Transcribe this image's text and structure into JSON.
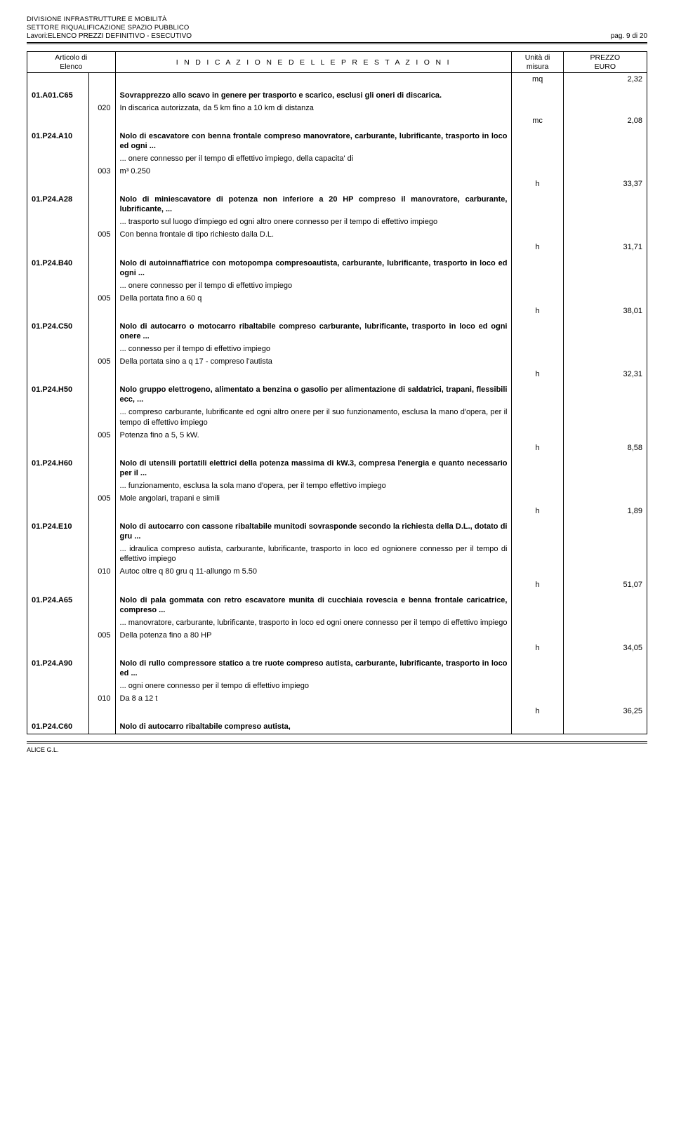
{
  "header": {
    "line1": "DIVISIONE INFRASTRUTTURE E MOBILITÀ",
    "line2": "SETTORE RIQUALIFICAZIONE SPAZIO PUBBLICO",
    "works": "Lavori:ELENCO PREZZI DEFINITIVO - ESECUTIVO",
    "page": "pag. 9 di 20"
  },
  "tableHeader": {
    "col1a": "Articolo di",
    "col1b": "Elenco",
    "col2": "I N D I C A Z I O N E   D E L L E   P R E S T A Z I O N I",
    "col3a": "Unità di",
    "col3b": "misura",
    "col4a": "PREZZO",
    "col4b": "EURO"
  },
  "rows": [
    {
      "t": "price",
      "unit": "mq",
      "price": "2,32"
    },
    {
      "t": "code",
      "code": "01.A01.C65",
      "desc": "Sovrapprezzo allo scavo in genere per trasporto e scarico, esclusi gli oneri di discarica.",
      "bold": true
    },
    {
      "t": "sub",
      "sub": "020",
      "desc": "In discarica autorizzata, da 5 km fino a 10 km di distanza"
    },
    {
      "t": "price",
      "unit": "mc",
      "price": "2,08"
    },
    {
      "t": "code",
      "code": "01.P24.A10",
      "desc": "Nolo di escavatore con benna frontale compreso manovratore, carburante, lubrificante, trasporto in loco ed ogni ...",
      "bold": true
    },
    {
      "t": "desc",
      "desc": "... onere connesso per il tempo di effettivo impiego,  della capacita' di"
    },
    {
      "t": "sub",
      "sub": "003",
      "desc": "m³ 0.250"
    },
    {
      "t": "price",
      "unit": "h",
      "price": "33,37"
    },
    {
      "t": "code",
      "code": "01.P24.A28",
      "desc": "Nolo di miniescavatore di potenza non inferiore a 20 HP compreso il manovratore, carburante, lubrificante, ...",
      "bold": true
    },
    {
      "t": "desc",
      "desc": "... trasporto sul luogo d'impiego ed ogni altro onere connesso per il tempo di effettivo impiego"
    },
    {
      "t": "sub",
      "sub": "005",
      "desc": "Con benna frontale di tipo richiesto dalla D.L."
    },
    {
      "t": "price",
      "unit": "h",
      "price": "31,71"
    },
    {
      "t": "code",
      "code": "01.P24.B40",
      "desc": "Nolo di autoinnaffiatrice con motopompa compresoautista, carburante, lubrificante, trasporto in loco ed ogni ...",
      "bold": true
    },
    {
      "t": "desc",
      "desc": "... onere connesso per il tempo di effettivo impiego"
    },
    {
      "t": "sub",
      "sub": "005",
      "desc": "Della portata fino a 60 q"
    },
    {
      "t": "price",
      "unit": "h",
      "price": "38,01"
    },
    {
      "t": "code",
      "code": "01.P24.C50",
      "desc": "Nolo di autocarro o motocarro ribaltabile compreso carburante, lubrificante,  trasporto in loco ed ogni onere ...",
      "bold": true
    },
    {
      "t": "desc",
      "desc": "... connesso per il tempo di effettivo impiego"
    },
    {
      "t": "sub",
      "sub": "005",
      "desc": "Della portata sino a q 17 - compreso l'autista"
    },
    {
      "t": "price",
      "unit": "h",
      "price": "32,31"
    },
    {
      "t": "code",
      "code": "01.P24.H50",
      "desc": "Nolo gruppo elettrogeno,  alimentato a benzina o gasolio per alimentazione di saldatrici, trapani, flessibili ecc, ...",
      "bold": true
    },
    {
      "t": "desc",
      "desc": "... compreso carburante,  lubrificante ed ogni altro onere per il suo funzionamento, esclusa la mano d'opera,  per il tempo di effettivo impiego"
    },
    {
      "t": "sub",
      "sub": "005",
      "desc": "Potenza fino a 5, 5 kW."
    },
    {
      "t": "price",
      "unit": "h",
      "price": "8,58"
    },
    {
      "t": "code",
      "code": "01.P24.H60",
      "desc": "Nolo di utensili portatili elettrici della potenza massima di kW.3,  compresa l'energia e quanto necessario per il ...",
      "bold": true
    },
    {
      "t": "desc",
      "desc": "... funzionamento,  esclusa la sola mano d'opera,  per il tempo effettivo impiego"
    },
    {
      "t": "sub",
      "sub": "005",
      "desc": "Mole angolari,  trapani e simili"
    },
    {
      "t": "price",
      "unit": "h",
      "price": "1,89"
    },
    {
      "t": "code",
      "code": "01.P24.E10",
      "desc": "Nolo di autocarro con cassone ribaltabile munitodi sovrasponde secondo la richiesta della D.L.,  dotato di gru ...",
      "bold": true
    },
    {
      "t": "desc",
      "desc": "... idraulica compreso autista,  carburante,  lubrificante, trasporto in loco ed ognionere connesso per il tempo di effettivo impiego"
    },
    {
      "t": "sub",
      "sub": "010",
      "desc": "Autoc oltre q 80 gru q 11-allungo m 5.50"
    },
    {
      "t": "price",
      "unit": "h",
      "price": "51,07"
    },
    {
      "t": "code",
      "code": "01.P24.A65",
      "desc": "Nolo di pala gommata con retro escavatore munita di cucchiaia rovescia e benna frontale caricatrice, compreso ...",
      "bold": true
    },
    {
      "t": "desc",
      "desc": "... manovratore,  carburante, lubrificante, trasporto in loco ed ogni onere connesso per il tempo di effettivo impiego"
    },
    {
      "t": "sub",
      "sub": "005",
      "desc": "Della potenza fino a 80 HP"
    },
    {
      "t": "price",
      "unit": "h",
      "price": "34,05"
    },
    {
      "t": "code",
      "code": "01.P24.A90",
      "desc": "Nolo di rullo compressore statico a tre ruote compreso autista, carburante,  lubrificante, trasporto in loco ed ...",
      "bold": true
    },
    {
      "t": "desc",
      "desc": "... ogni onere connesso per il tempo di effettivo impiego"
    },
    {
      "t": "sub",
      "sub": "010",
      "desc": "Da 8 a 12 t"
    },
    {
      "t": "price",
      "unit": "h",
      "price": "36,25"
    },
    {
      "t": "code",
      "code": "01.P24.C60",
      "desc": "Nolo di autocarro ribaltabile compreso autista,",
      "bold": true,
      "last": true
    }
  ],
  "footer": {
    "text": "ALICE G.L."
  }
}
